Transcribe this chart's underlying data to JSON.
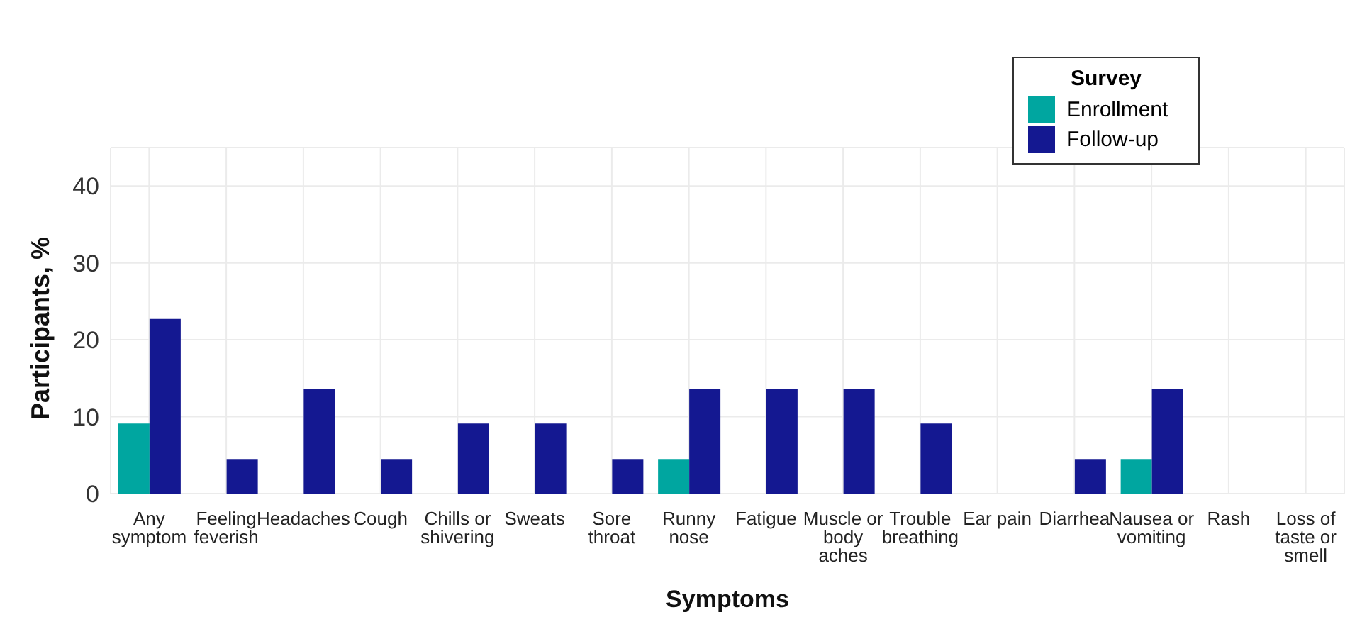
{
  "chart_data": {
    "type": "bar",
    "xlabel": "Symptoms",
    "ylabel": "Participants, %",
    "legend_title": "Survey",
    "categories": [
      "Any symptom",
      "Feeling feverish",
      "Headaches",
      "Cough",
      "Chills or shivering",
      "Sweats",
      "Sore throat",
      "Runny nose",
      "Fatigue",
      "Muscle or body aches",
      "Trouble breathing",
      "Ear pain",
      "Diarrhea",
      "Nausea or vomiting",
      "Rash",
      "Loss of taste or smell"
    ],
    "series": [
      {
        "name": "Enrollment",
        "color": "#00a6a0",
        "values": [
          9.1,
          0,
          0,
          0,
          0,
          0,
          0,
          4.5,
          0,
          0,
          0,
          0,
          0,
          4.5,
          0,
          0
        ]
      },
      {
        "name": "Follow-up",
        "color": "#141891",
        "values": [
          22.7,
          4.5,
          13.6,
          4.5,
          9.1,
          9.1,
          4.5,
          13.6,
          13.6,
          13.6,
          9.1,
          0,
          4.5,
          13.6,
          0,
          0
        ]
      }
    ],
    "ylim": [
      0,
      45
    ],
    "yticks": [
      0,
      10,
      20,
      30,
      40
    ],
    "grid": true,
    "legend": "top right"
  }
}
